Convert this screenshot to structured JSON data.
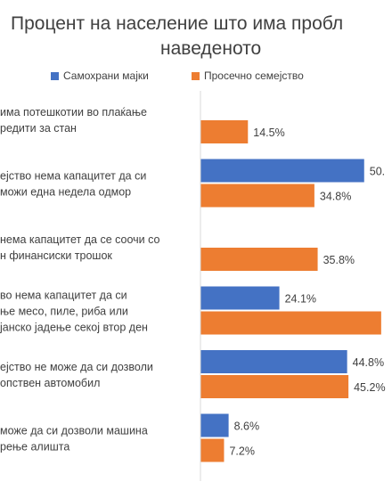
{
  "title_line1": "Процент на население што има пробл",
  "title_line2": "наведеното",
  "legend": [
    {
      "label": "Самохрани мајки",
      "color": "#4472C4"
    },
    {
      "label": "Просечно семејство",
      "color": "#ED7D31"
    }
  ],
  "chart_data": {
    "type": "bar",
    "orientation": "horizontal",
    "categories": [
      [
        "има потешкотии во плаќање",
        "редити за стан"
      ],
      [
        "ејство нема капацитет да си",
        "можи една недела одмор"
      ],
      [
        "нема капацитет да се соочи со",
        "н финансиски трошок"
      ],
      [
        "во нема капацитет да си",
        "ње месо, пиле, риба или",
        "јанско јадење секој втор ден"
      ],
      [
        "ејство не може да си дозволи",
        "опствен автомобил"
      ],
      [
        "може да си дозволи машина",
        "рење алишта"
      ]
    ],
    "series": [
      {
        "name": "Самохрани мајки",
        "color": "#4472C4",
        "values": [
          null,
          50.0,
          null,
          24.1,
          44.8,
          8.6
        ],
        "labels": [
          "",
          "50.",
          "",
          "24.1%",
          "44.8%",
          "8.6%"
        ]
      },
      {
        "name": "Просечно семејство",
        "color": "#ED7D31",
        "values": [
          14.5,
          34.8,
          35.8,
          55.2,
          45.2,
          7.2
        ],
        "labels": [
          "14.5%",
          "34.8%",
          "35.8%",
          "",
          "45.2%",
          "7.2%"
        ]
      }
    ],
    "xlim": [
      0,
      58
    ]
  }
}
